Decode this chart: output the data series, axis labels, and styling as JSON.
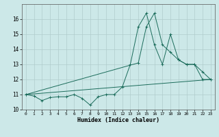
{
  "xlabel": "Humidex (Indice chaleur)",
  "bg_color": "#cce8e8",
  "grid_color": "#b0cccc",
  "line_color": "#1a6b5a",
  "xlim": [
    -0.5,
    23.5
  ],
  "ylim": [
    10,
    17
  ],
  "yticks": [
    10,
    11,
    12,
    13,
    14,
    15,
    16
  ],
  "xticks": [
    0,
    1,
    2,
    3,
    4,
    5,
    6,
    7,
    8,
    9,
    10,
    11,
    12,
    13,
    14,
    15,
    16,
    17,
    18,
    19,
    20,
    21,
    22,
    23
  ],
  "series1_x": [
    0,
    1,
    2,
    3,
    4,
    5,
    6,
    7,
    8,
    9,
    10,
    11,
    12,
    13,
    14,
    15,
    16,
    17,
    18,
    19,
    20,
    21,
    22,
    23
  ],
  "series1_y": [
    11.0,
    10.9,
    10.6,
    10.8,
    10.85,
    10.85,
    11.0,
    10.75,
    10.3,
    10.85,
    11.0,
    11.0,
    11.5,
    13.0,
    15.5,
    16.4,
    14.3,
    13.0,
    15.0,
    13.3,
    13.0,
    13.0,
    12.5,
    12.0
  ],
  "series2_x": [
    0,
    14,
    15,
    16,
    17,
    18,
    19,
    20,
    21,
    22,
    23
  ],
  "series2_y": [
    11.0,
    13.1,
    15.5,
    16.4,
    14.3,
    13.8,
    13.3,
    13.0,
    13.0,
    12.0,
    12.0
  ],
  "series3_x": [
    0,
    23
  ],
  "series3_y": [
    11.0,
    12.0
  ]
}
